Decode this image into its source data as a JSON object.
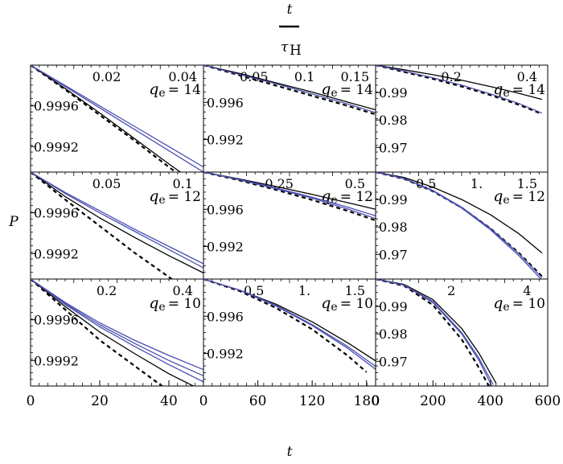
{
  "top_axis": {
    "label_num": "t",
    "label_den_tau": "τ",
    "label_den_sub": "H"
  },
  "ylabel": "P",
  "xlabel": "t",
  "colors": {
    "black": "#000000",
    "blue": "#4b4fb0",
    "frame": "#000000"
  },
  "bottom_ticks": [
    {
      "values": [
        0,
        20,
        40
      ],
      "labels": [
        "0",
        "20",
        "40"
      ],
      "range": [
        0,
        50
      ]
    },
    {
      "values": [
        0,
        60,
        120,
        180
      ],
      "labels": [
        "0",
        "60",
        "120",
        "180"
      ],
      "range": [
        0,
        190
      ]
    },
    {
      "values": [
        0,
        200,
        400,
        600
      ],
      "labels": [
        "0",
        "200",
        "400",
        "600"
      ],
      "range": [
        0,
        600
      ]
    }
  ],
  "chart_data": [
    {
      "type": "line",
      "row": 0,
      "col": 0,
      "qlabel": "q",
      "qsub": "e",
      "qval": "= 14",
      "xlim": [
        0,
        50
      ],
      "ylim": [
        0.99895,
        1.0
      ],
      "top_ticks": [
        "0.02",
        "0.04"
      ],
      "top_tick_x": [
        0.02,
        0.04
      ],
      "yticks": [
        "0.9996",
        "0.9992"
      ],
      "ytick_vals": [
        0.9996,
        0.9992
      ],
      "series": [
        {
          "color": "black",
          "dash": false,
          "x": [
            0,
            10,
            20,
            30,
            40,
            45
          ],
          "y": [
            1.0,
            0.99977,
            0.99953,
            0.99928,
            0.99903,
            0.99891
          ]
        },
        {
          "color": "black",
          "dash": true,
          "x": [
            0,
            10,
            20,
            30,
            40,
            45
          ],
          "y": [
            1.0,
            0.99976,
            0.99951,
            0.99926,
            0.999,
            0.99887
          ]
        },
        {
          "color": "blue",
          "dash": false,
          "x": [
            0,
            10,
            20,
            30,
            40,
            50
          ],
          "y": [
            1.0,
            0.99979,
            0.99958,
            0.99937,
            0.99916,
            0.99895
          ]
        },
        {
          "color": "blue",
          "dash": false,
          "x": [
            0,
            10,
            20,
            30,
            40,
            50
          ],
          "y": [
            1.0,
            0.9998,
            0.9996,
            0.9994,
            0.9992,
            0.999
          ]
        }
      ]
    },
    {
      "type": "line",
      "row": 0,
      "col": 1,
      "qlabel": "q",
      "qsub": "e",
      "qval": "= 14",
      "xlim": [
        0,
        190
      ],
      "ylim": [
        0.9885,
        1.0
      ],
      "top_ticks": [
        "0.05",
        "0.1",
        "0.15"
      ],
      "top_tick_x": [
        0.05,
        0.1,
        0.15
      ],
      "yticks": [
        "0.996",
        "0.992"
      ],
      "ytick_vals": [
        0.996,
        0.992
      ],
      "series": [
        {
          "color": "black",
          "dash": false,
          "x": [
            0,
            40,
            80,
            120,
            160,
            190
          ],
          "y": [
            1.0,
            0.9991,
            0.9981,
            0.9971,
            0.996,
            0.9952
          ]
        },
        {
          "color": "black",
          "dash": true,
          "x": [
            0,
            40,
            80,
            120,
            160,
            190
          ],
          "y": [
            1.0,
            0.9989,
            0.9978,
            0.9967,
            0.9956,
            0.9947
          ]
        },
        {
          "color": "blue",
          "dash": false,
          "x": [
            0,
            40,
            80,
            120,
            160,
            190
          ],
          "y": [
            1.0,
            0.999,
            0.998,
            0.9969,
            0.9958,
            0.9949
          ]
        }
      ]
    },
    {
      "type": "line",
      "row": 0,
      "col": 2,
      "qlabel": "q",
      "qsub": "e",
      "qval": "= 14",
      "xlim": [
        0,
        600
      ],
      "ylim": [
        0.961,
        1.0
      ],
      "top_ticks": [
        "0.2",
        "0.4"
      ],
      "top_tick_x": [
        0.2,
        0.4
      ],
      "yticks": [
        "0.99",
        "0.98",
        "0.97"
      ],
      "ytick_vals": [
        0.99,
        0.98,
        0.97
      ],
      "series": [
        {
          "color": "black",
          "dash": false,
          "x": [
            0,
            100,
            200,
            300,
            400,
            500,
            580
          ],
          "y": [
            1.0,
            0.9983,
            0.9965,
            0.9945,
            0.9922,
            0.9897,
            0.9875
          ]
        },
        {
          "color": "black",
          "dash": true,
          "x": [
            0,
            100,
            200,
            300,
            400,
            500,
            580
          ],
          "y": [
            1.0,
            0.9975,
            0.995,
            0.9922,
            0.9891,
            0.9855,
            0.9822
          ]
        },
        {
          "color": "blue",
          "dash": false,
          "x": [
            0,
            100,
            200,
            300,
            400,
            500,
            580
          ],
          "y": [
            1.0,
            0.9978,
            0.9954,
            0.9927,
            0.9895,
            0.986,
            0.9825
          ]
        }
      ]
    },
    {
      "type": "line",
      "row": 1,
      "col": 0,
      "qlabel": "q",
      "qsub": "e",
      "qval": "= 12",
      "xlim": [
        0,
        50
      ],
      "ylim": [
        0.99895,
        1.0
      ],
      "top_ticks": [
        "0.05",
        "0.1"
      ],
      "top_tick_x": [
        0.05,
        0.1
      ],
      "yticks": [
        "0.9996",
        "0.9992"
      ],
      "ytick_vals": [
        0.9996,
        0.9992
      ],
      "series": [
        {
          "color": "black",
          "dash": false,
          "x": [
            0,
            10,
            20,
            30,
            40,
            50
          ],
          "y": [
            1.0,
            0.99976,
            0.99955,
            0.99936,
            0.99918,
            0.99901
          ]
        },
        {
          "color": "black",
          "dash": true,
          "x": [
            0,
            10,
            20,
            30,
            40,
            45
          ],
          "y": [
            1.0,
            0.99973,
            0.99947,
            0.99921,
            0.99897,
            0.99885
          ]
        },
        {
          "color": "blue",
          "dash": false,
          "x": [
            0,
            10,
            20,
            30,
            40,
            50
          ],
          "y": [
            1.0,
            0.9998,
            0.99962,
            0.99944,
            0.99927,
            0.9991
          ]
        },
        {
          "color": "blue",
          "dash": false,
          "x": [
            0,
            10,
            20,
            30,
            40,
            50
          ],
          "y": [
            1.0,
            0.99979,
            0.9996,
            0.99942,
            0.99924,
            0.99906
          ]
        }
      ]
    },
    {
      "type": "line",
      "row": 1,
      "col": 1,
      "qlabel": "q",
      "qsub": "e",
      "qval": "= 12",
      "xlim": [
        0,
        190
      ],
      "ylim": [
        0.9885,
        1.0
      ],
      "top_ticks": [
        "0.25",
        "0.5"
      ],
      "top_tick_x": [
        0.25,
        0.5
      ],
      "yticks": [
        "0.996",
        "0.992"
      ],
      "ytick_vals": [
        0.996,
        0.992
      ],
      "series": [
        {
          "color": "black",
          "dash": false,
          "x": [
            0,
            40,
            80,
            120,
            160,
            190
          ],
          "y": [
            1.0,
            0.99925,
            0.99845,
            0.9976,
            0.9967,
            0.996
          ]
        },
        {
          "color": "black",
          "dash": true,
          "x": [
            0,
            40,
            80,
            120,
            160,
            190
          ],
          "y": [
            1.0,
            0.9991,
            0.9981,
            0.997,
            0.9958,
            0.9948
          ]
        },
        {
          "color": "blue",
          "dash": false,
          "x": [
            0,
            40,
            80,
            120,
            160,
            190
          ],
          "y": [
            1.0,
            0.9992,
            0.9983,
            0.9973,
            0.9962,
            0.9953
          ]
        },
        {
          "color": "blue",
          "dash": false,
          "x": [
            0,
            40,
            80,
            120,
            160,
            190
          ],
          "y": [
            1.0,
            0.99915,
            0.9982,
            0.9972,
            0.996,
            0.995
          ]
        }
      ]
    },
    {
      "type": "line",
      "row": 1,
      "col": 2,
      "qlabel": "q",
      "qsub": "e",
      "qval": "= 12",
      "xlim": [
        0,
        600
      ],
      "ylim": [
        0.961,
        1.0
      ],
      "top_ticks": [
        "0.5",
        "1.",
        "1.5"
      ],
      "top_tick_x": [
        0.5,
        1.0,
        1.5
      ],
      "yticks": [
        "0.99",
        "0.98",
        "0.97"
      ],
      "ytick_vals": [
        0.99,
        0.98,
        0.97
      ],
      "series": [
        {
          "color": "black",
          "dash": false,
          "x": [
            0,
            100,
            200,
            300,
            400,
            500,
            580
          ],
          "y": [
            1.0,
            0.998,
            0.9945,
            0.99,
            0.9845,
            0.9775,
            0.9705
          ]
        },
        {
          "color": "black",
          "dash": true,
          "x": [
            0,
            100,
            200,
            300,
            400,
            500,
            580
          ],
          "y": [
            1.0,
            0.9975,
            0.993,
            0.987,
            0.9795,
            0.9705,
            0.962
          ]
        },
        {
          "color": "blue",
          "dash": false,
          "x": [
            0,
            100,
            200,
            300,
            400,
            500,
            580
          ],
          "y": [
            1.0,
            0.9977,
            0.9933,
            0.9872,
            0.9795,
            0.9702,
            0.9615
          ]
        },
        {
          "color": "blue",
          "dash": false,
          "x": [
            0,
            100,
            200,
            300,
            400,
            500,
            580
          ],
          "y": [
            1.0,
            0.9976,
            0.9931,
            0.9869,
            0.979,
            0.9695,
            0.9606
          ]
        }
      ]
    },
    {
      "type": "line",
      "row": 2,
      "col": 0,
      "qlabel": "q",
      "qsub": "e",
      "qval": "= 10",
      "xlim": [
        0,
        50
      ],
      "ylim": [
        0.99895,
        1.0
      ],
      "top_ticks": [
        "0.2",
        "0.4"
      ],
      "top_tick_x": [
        0.2,
        0.4
      ],
      "yticks": [
        "0.9996",
        "0.9992"
      ],
      "ytick_vals": [
        0.9996,
        0.9992
      ],
      "series": [
        {
          "color": "black",
          "dash": false,
          "x": [
            0,
            10,
            20,
            30,
            40,
            50
          ],
          "y": [
            1.0,
            0.99973,
            0.99948,
            0.99927,
            0.99907,
            0.9989
          ]
        },
        {
          "color": "black",
          "dash": true,
          "x": [
            0,
            10,
            20,
            30,
            40
          ],
          "y": [
            1.0,
            0.9997,
            0.9994,
            0.99915,
            0.9989
          ]
        },
        {
          "color": "blue",
          "dash": false,
          "x": [
            0,
            10,
            20,
            30,
            40,
            50
          ],
          "y": [
            1.0,
            0.99977,
            0.99957,
            0.9994,
            0.99925,
            0.99911
          ]
        },
        {
          "color": "blue",
          "dash": false,
          "x": [
            0,
            10,
            20,
            30,
            40,
            50
          ],
          "y": [
            1.0,
            0.99976,
            0.99955,
            0.99937,
            0.9992,
            0.99905
          ]
        },
        {
          "color": "blue",
          "dash": false,
          "x": [
            0,
            10,
            20,
            30,
            40,
            50
          ],
          "y": [
            1.0,
            0.99975,
            0.99953,
            0.99934,
            0.99916,
            0.99899
          ]
        }
      ]
    },
    {
      "type": "line",
      "row": 2,
      "col": 1,
      "qlabel": "q",
      "qsub": "e",
      "qval": "= 10",
      "xlim": [
        0,
        190
      ],
      "ylim": [
        0.9885,
        1.0
      ],
      "top_ticks": [
        "0.5",
        "1.",
        "1.5"
      ],
      "top_tick_x": [
        0.5,
        1.0,
        1.5
      ],
      "yticks": [
        "0.996",
        "0.992"
      ],
      "ytick_vals": [
        0.996,
        0.992
      ],
      "series": [
        {
          "color": "black",
          "dash": false,
          "x": [
            0,
            40,
            80,
            120,
            160,
            190
          ],
          "y": [
            1.0,
            0.9988,
            0.9973,
            0.9954,
            0.9931,
            0.9912
          ]
        },
        {
          "color": "black",
          "dash": true,
          "x": [
            0,
            40,
            80,
            120,
            160,
            180
          ],
          "y": [
            1.0,
            0.9987,
            0.9969,
            0.9946,
            0.9917,
            0.99
          ]
        },
        {
          "color": "blue",
          "dash": false,
          "x": [
            0,
            40,
            80,
            120,
            160,
            190
          ],
          "y": [
            1.0,
            0.9988,
            0.9972,
            0.9951,
            0.9927,
            0.9906
          ]
        },
        {
          "color": "blue",
          "dash": false,
          "x": [
            0,
            40,
            80,
            120,
            160,
            190
          ],
          "y": [
            1.0,
            0.9988,
            0.9971,
            0.995,
            0.9925,
            0.9903
          ]
        }
      ]
    },
    {
      "type": "line",
      "row": 2,
      "col": 2,
      "qlabel": "q",
      "qsub": "e",
      "qval": "= 10",
      "xlim": [
        0,
        600
      ],
      "ylim": [
        0.961,
        1.0
      ],
      "top_ticks": [
        "2",
        "4"
      ],
      "top_tick_x": [
        2,
        4
      ],
      "yticks": [
        "0.99",
        "0.98",
        "0.97"
      ],
      "ytick_vals": [
        0.99,
        0.98,
        0.97
      ],
      "series": [
        {
          "color": "black",
          "dash": false,
          "x": [
            0,
            100,
            200,
            300,
            360,
            420
          ],
          "y": [
            1.0,
            0.998,
            0.9925,
            0.982,
            0.973,
            0.962
          ]
        },
        {
          "color": "black",
          "dash": true,
          "x": [
            0,
            100,
            200,
            300,
            350,
            395
          ],
          "y": [
            1.0,
            0.9975,
            0.9905,
            0.978,
            0.9695,
            0.961
          ]
        },
        {
          "color": "blue",
          "dash": false,
          "x": [
            0,
            100,
            200,
            300,
            360,
            410
          ],
          "y": [
            1.0,
            0.9978,
            0.9918,
            0.9805,
            0.9712,
            0.9615
          ]
        },
        {
          "color": "blue",
          "dash": false,
          "x": [
            0,
            100,
            200,
            300,
            360,
            405
          ],
          "y": [
            1.0,
            0.9977,
            0.9914,
            0.98,
            0.9704,
            0.961
          ]
        }
      ]
    }
  ]
}
